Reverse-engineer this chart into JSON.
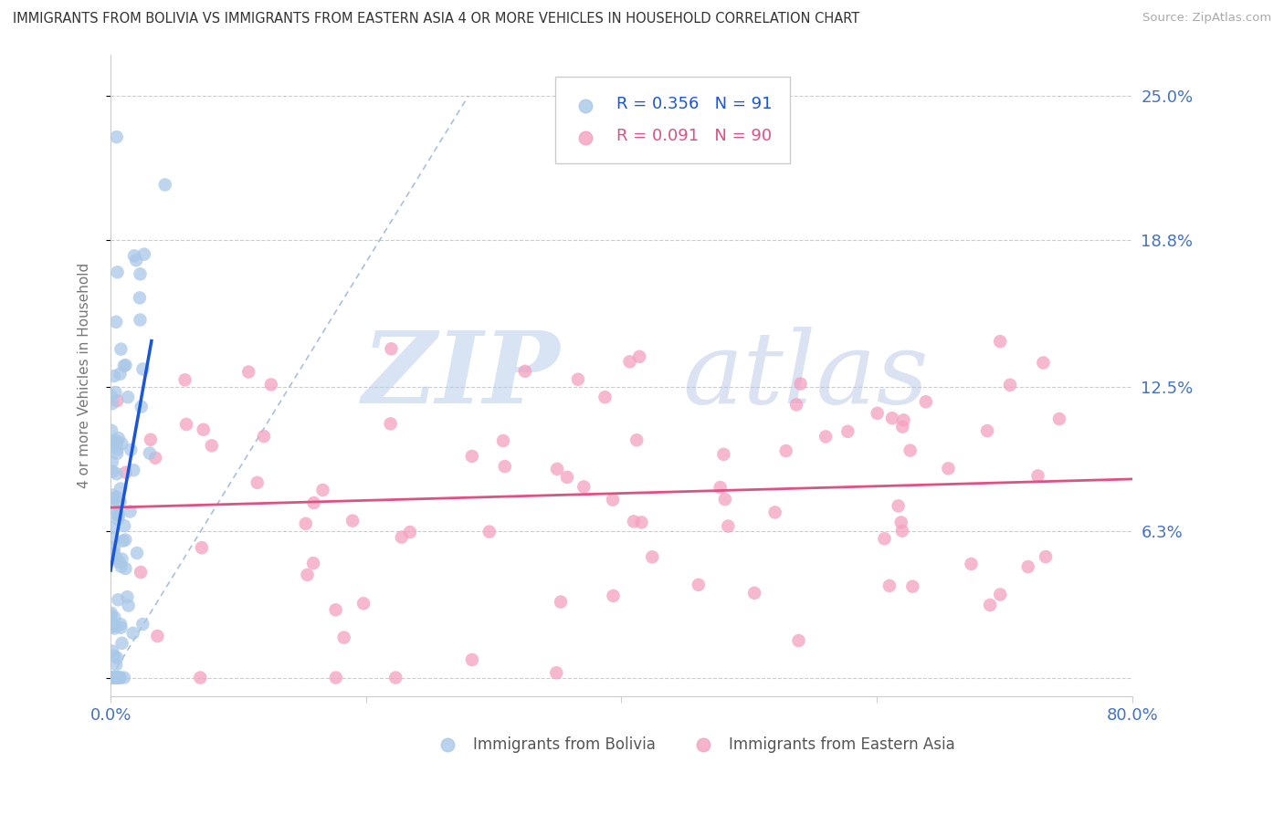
{
  "title": "IMMIGRANTS FROM BOLIVIA VS IMMIGRANTS FROM EASTERN ASIA 4 OR MORE VEHICLES IN HOUSEHOLD CORRELATION CHART",
  "source": "Source: ZipAtlas.com",
  "ylabel": "4 or more Vehicles in Household",
  "x_min": 0.0,
  "x_max": 0.8,
  "y_min": -0.008,
  "y_max": 0.268,
  "y_ticks": [
    0.0,
    0.063,
    0.125,
    0.188,
    0.25
  ],
  "y_tick_labels": [
    "",
    "6.3%",
    "12.5%",
    "18.8%",
    "25.0%"
  ],
  "x_ticks": [
    0.0,
    0.2,
    0.4,
    0.6,
    0.8
  ],
  "x_tick_labels": [
    "0.0%",
    "",
    "",
    "",
    "80.0%"
  ],
  "bolivia_R": 0.356,
  "bolivia_N": 91,
  "eastern_asia_R": 0.091,
  "eastern_asia_N": 90,
  "bolivia_color": "#a8c8e8",
  "eastern_asia_color": "#f4a0c0",
  "bolivia_line_color": "#1a56db",
  "eastern_asia_line_color": "#e05080",
  "ref_line_color": "#a0b8d8",
  "watermark_zip": "ZIP",
  "watermark_atlas": "atlas",
  "watermark_color": "#c8d8f0",
  "background_color": "#ffffff",
  "grid_color": "#cccccc",
  "title_color": "#333333",
  "axis_label_color": "#777777",
  "tick_label_color": "#4472c4",
  "right_tick_color": "#4472c4",
  "legend_border_color": "#cccccc",
  "bolivia_scatter_seed": 12,
  "eastern_scatter_seed": 99
}
